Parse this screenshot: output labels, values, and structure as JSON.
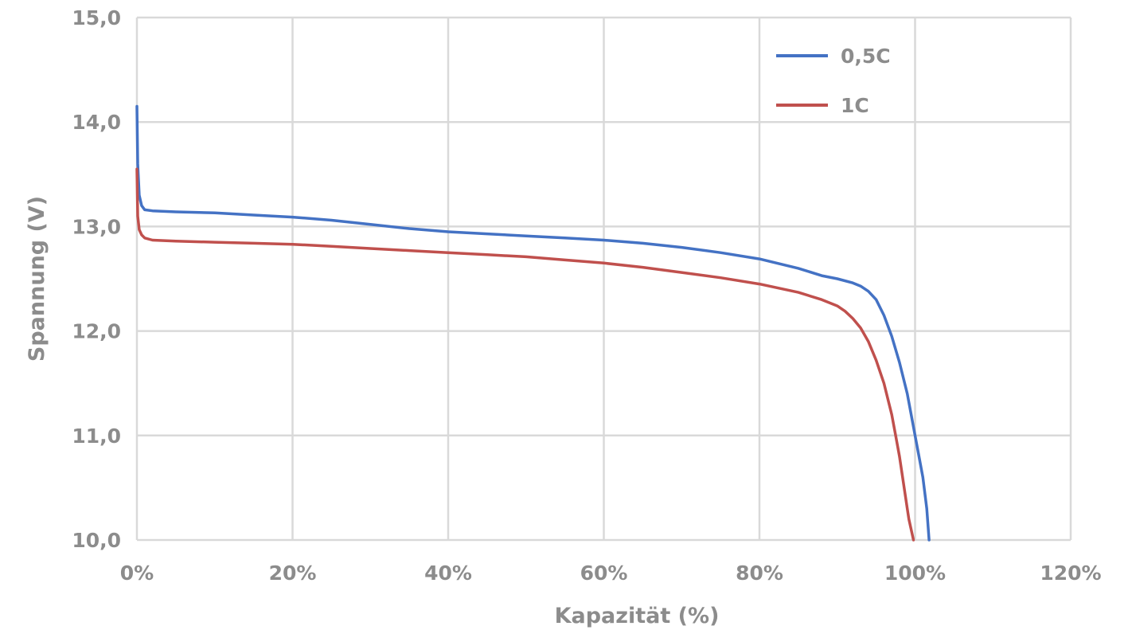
{
  "chart_data": {
    "type": "line",
    "title": "",
    "xlabel": "Kapazität (%)",
    "ylabel": "Spannung (V)",
    "xlim": [
      0,
      120
    ],
    "ylim": [
      10,
      15
    ],
    "x_ticks": [
      0,
      20,
      40,
      60,
      80,
      100,
      120
    ],
    "x_tick_labels": [
      "0%",
      "20%",
      "40%",
      "60%",
      "80%",
      "100%",
      "120%"
    ],
    "y_ticks": [
      10,
      11,
      12,
      13,
      14,
      15
    ],
    "y_tick_labels": [
      "10,0",
      "11,0",
      "12,0",
      "13,0",
      "14,0",
      "15,0"
    ],
    "grid": true,
    "legend_position": "top-right",
    "series": [
      {
        "name": "0,5C",
        "color": "#4472c4",
        "x": [
          0,
          0.1,
          0.3,
          0.6,
          1,
          2,
          5,
          10,
          15,
          20,
          25,
          30,
          35,
          40,
          45,
          50,
          55,
          60,
          65,
          70,
          75,
          80,
          85,
          88,
          90,
          92,
          93,
          94,
          95,
          96,
          97,
          98,
          99,
          99.5,
          100,
          100.5,
          101,
          101.5,
          101.8
        ],
        "y": [
          14.15,
          13.6,
          13.3,
          13.2,
          13.16,
          13.15,
          13.14,
          13.13,
          13.11,
          13.09,
          13.06,
          13.02,
          12.98,
          12.95,
          12.93,
          12.91,
          12.89,
          12.87,
          12.84,
          12.8,
          12.75,
          12.69,
          12.6,
          12.53,
          12.5,
          12.46,
          12.43,
          12.38,
          12.3,
          12.15,
          11.95,
          11.7,
          11.4,
          11.2,
          11.0,
          10.8,
          10.6,
          10.3,
          10.0
        ]
      },
      {
        "name": "1C",
        "color": "#c0504d",
        "x": [
          0,
          0.1,
          0.3,
          0.6,
          1,
          2,
          5,
          10,
          15,
          20,
          25,
          30,
          35,
          40,
          45,
          50,
          55,
          60,
          65,
          70,
          75,
          80,
          85,
          88,
          90,
          91,
          92,
          93,
          94,
          95,
          96,
          97,
          97.5,
          98,
          98.5,
          99,
          99.2,
          99.5,
          99.8
        ],
        "y": [
          13.55,
          13.1,
          12.97,
          12.92,
          12.89,
          12.87,
          12.86,
          12.85,
          12.84,
          12.83,
          12.81,
          12.79,
          12.77,
          12.75,
          12.73,
          12.71,
          12.68,
          12.65,
          12.61,
          12.56,
          12.51,
          12.45,
          12.37,
          12.3,
          12.24,
          12.19,
          12.12,
          12.03,
          11.9,
          11.72,
          11.5,
          11.2,
          11.0,
          10.8,
          10.55,
          10.3,
          10.2,
          10.1,
          10.0
        ]
      }
    ]
  }
}
